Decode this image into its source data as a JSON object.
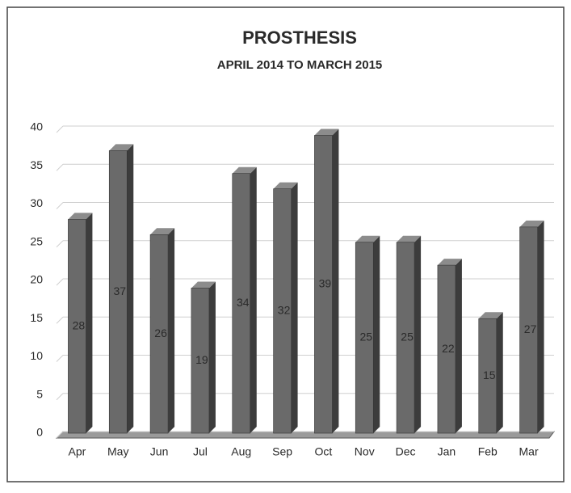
{
  "chart_data": {
    "type": "bar",
    "title": "PROSTHESIS",
    "subtitle": "APRIL 2014 TO MARCH 2015",
    "categories": [
      "Apr",
      "May",
      "Jun",
      "Jul",
      "Aug",
      "Sep",
      "Oct",
      "Nov",
      "Dec",
      "Jan",
      "Feb",
      "Mar"
    ],
    "values": [
      28,
      37,
      26,
      19,
      34,
      32,
      39,
      25,
      25,
      22,
      15,
      27
    ],
    "color": "#6a6a6a",
    "ylim": [
      0,
      40
    ],
    "yticks": [
      0,
      5,
      10,
      15,
      20,
      25,
      30,
      35,
      40
    ],
    "grid": true
  }
}
